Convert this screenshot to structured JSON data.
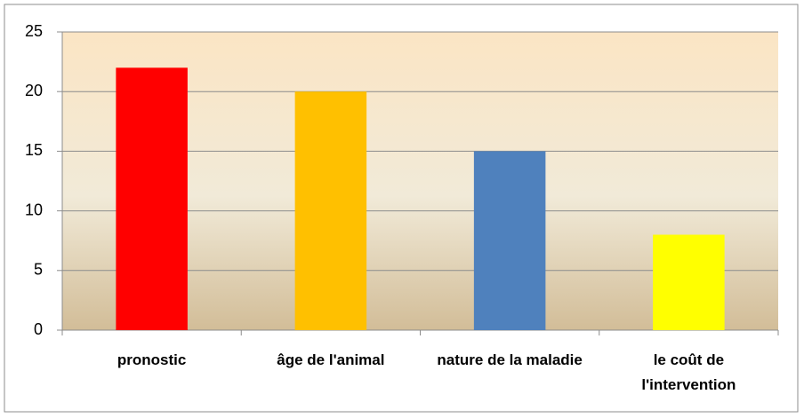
{
  "chart_data": {
    "type": "bar",
    "categories": [
      "pronostic",
      "âge de l'animal",
      "nature de la maladie",
      "le coût de l'intervention"
    ],
    "values": [
      22,
      20,
      15,
      8
    ],
    "colors": [
      "#ff0000",
      "#ffc000",
      "#4f81bd",
      "#ffff00"
    ],
    "ylim": [
      0,
      25
    ],
    "yticks": [
      0,
      5,
      10,
      15,
      20,
      25
    ],
    "grid": true
  }
}
